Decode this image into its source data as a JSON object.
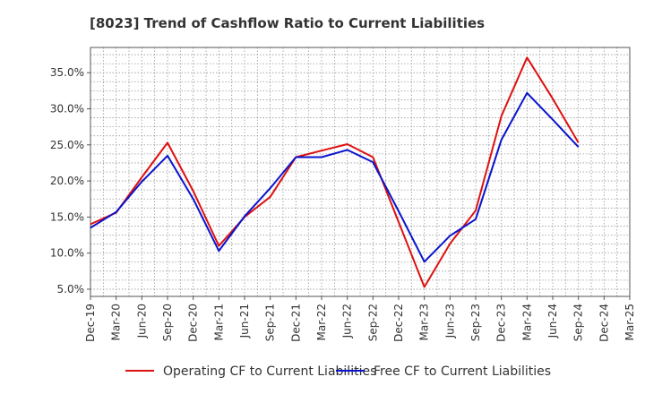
{
  "chart_data": {
    "type": "line",
    "title": "[8023]  Trend of Cashflow Ratio to Current Liabilities",
    "xlabel": "",
    "ylabel": "",
    "categories": [
      "Dec-19",
      "Mar-20",
      "Jun-20",
      "Sep-20",
      "Dec-20",
      "Mar-21",
      "Jun-21",
      "Sep-21",
      "Dec-21",
      "Mar-22",
      "Jun-22",
      "Sep-22",
      "Dec-22",
      "Mar-23",
      "Jun-23",
      "Sep-23",
      "Dec-23",
      "Mar-24",
      "Jun-24",
      "Sep-24",
      "Dec-24",
      "Mar-25"
    ],
    "y_ticks": [
      "5.0%",
      "10.0%",
      "15.0%",
      "20.0%",
      "25.0%",
      "30.0%",
      "35.0%"
    ],
    "y_tick_values": [
      5,
      10,
      15,
      20,
      25,
      30,
      35
    ],
    "ylim": [
      4,
      38.5
    ],
    "grid": true,
    "legend_position": "bottom",
    "series": [
      {
        "name": "Operating CF to Current Liabilities",
        "color": "#dd1111",
        "values": [
          14.0,
          15.6,
          20.5,
          25.3,
          18.6,
          11.0,
          15.0,
          17.8,
          23.3,
          24.2,
          25.1,
          23.3,
          14.3,
          5.3,
          11.3,
          15.9,
          29.0,
          37.1,
          31.4,
          25.3,
          null,
          null
        ]
      },
      {
        "name": "Free CF to Current Liabilities",
        "color": "#0a14cc",
        "values": [
          13.5,
          15.7,
          19.9,
          23.5,
          17.5,
          10.3,
          15.1,
          19.0,
          23.3,
          23.3,
          24.3,
          22.6,
          15.8,
          8.8,
          12.4,
          14.7,
          25.7,
          32.2,
          28.5,
          24.7,
          null,
          null
        ]
      }
    ]
  }
}
